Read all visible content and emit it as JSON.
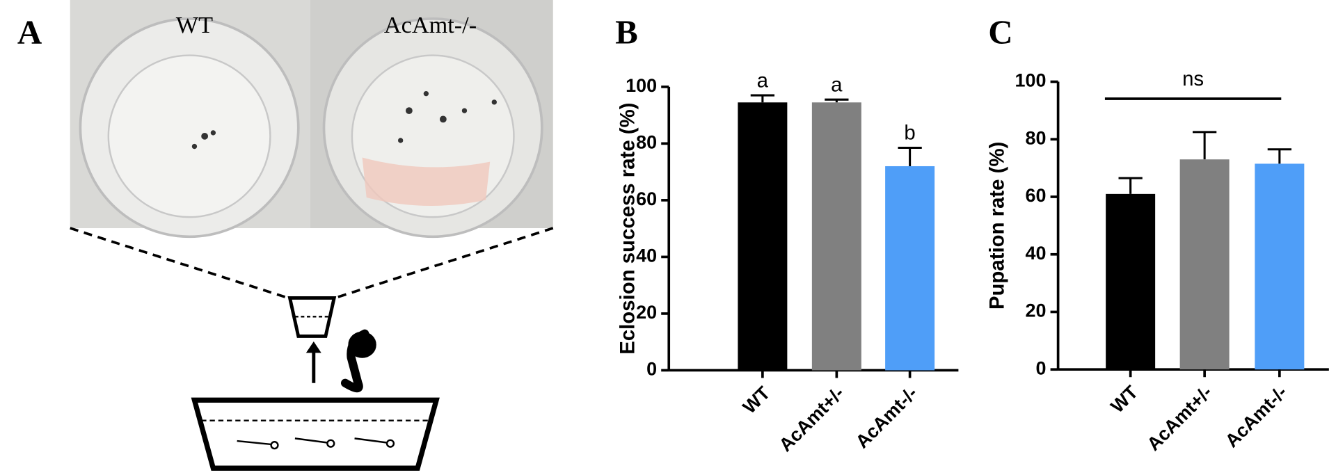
{
  "panel_labels": [
    "A",
    "B",
    "C"
  ],
  "photo_labels": [
    "WT",
    "AcAmt-/-"
  ],
  "chart_data": [
    {
      "type": "bar",
      "ylabel": "Eclosion success rate (%)",
      "categories": [
        "WT",
        "AcAmt+/-",
        "AcAmt-/-"
      ],
      "values": [
        94.5,
        94.5,
        72
      ],
      "errors": [
        2.5,
        1,
        6.5
      ],
      "colors": [
        "#000000",
        "#808080",
        "#4f9ef8"
      ],
      "significance": [
        "a",
        "a",
        "b"
      ],
      "ylim": [
        0,
        100
      ],
      "yticks": [
        0,
        20,
        40,
        60,
        80,
        100
      ]
    },
    {
      "type": "bar",
      "ylabel": "Pupation rate (%)",
      "categories": [
        "WT",
        "AcAmt+/-",
        "AcAmt-/-"
      ],
      "values": [
        61,
        73,
        71.5
      ],
      "errors": [
        5.5,
        9.5,
        5
      ],
      "colors": [
        "#000000",
        "#808080",
        "#4f9ef8"
      ],
      "annotation": "ns",
      "ylim": [
        0,
        100
      ],
      "yticks": [
        0,
        20,
        40,
        60,
        80,
        100
      ]
    }
  ]
}
